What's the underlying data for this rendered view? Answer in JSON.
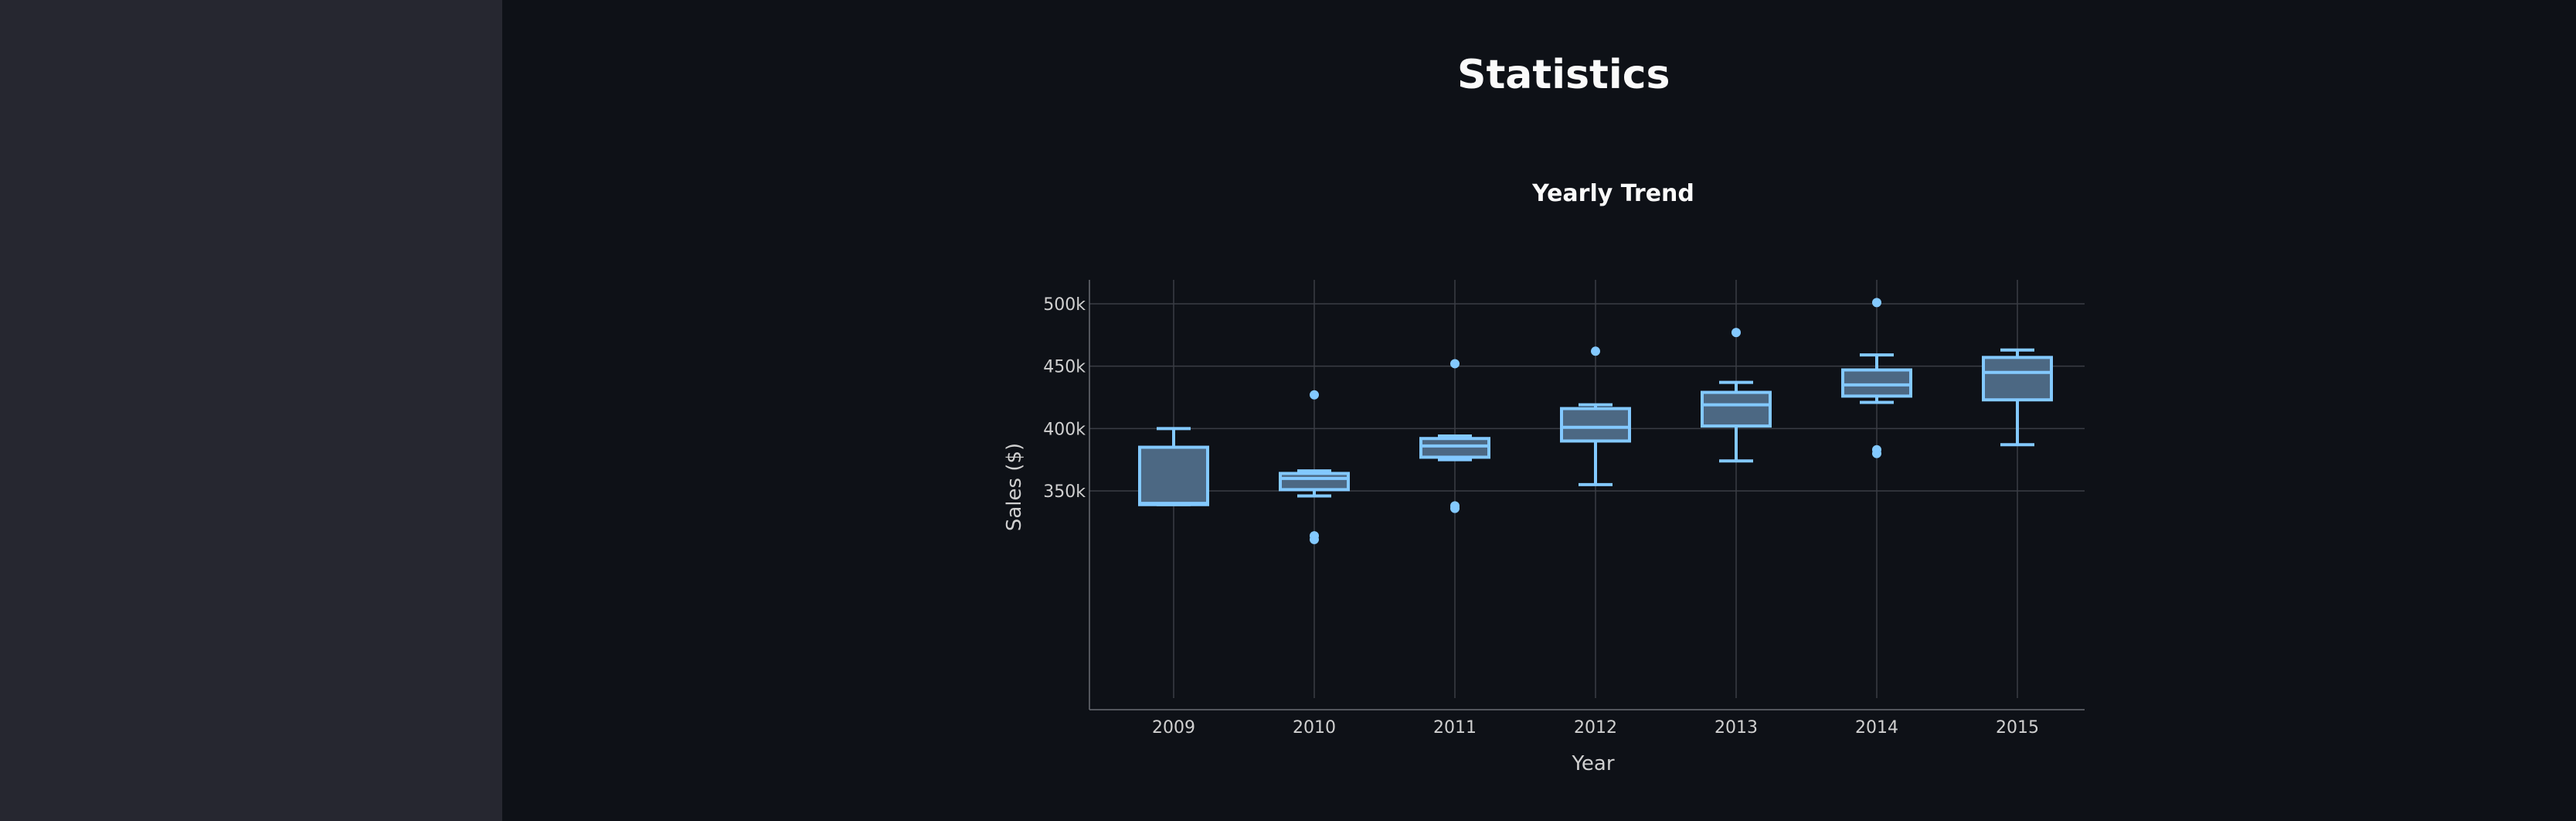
{
  "page": {
    "title": "Statistics"
  },
  "colors": {
    "sidebar_bg": "#262730",
    "main_bg": "#0e1117",
    "box_stroke": "#83c9ff",
    "box_fill": "#4c6883",
    "grid": "#3a3d45",
    "text": "#fafafa"
  },
  "chart_data": {
    "type": "box",
    "title": "Yearly Trend",
    "xlabel": "Year",
    "ylabel": "Sales ($)",
    "ylim": [
      305000,
      512000
    ],
    "yticks": [
      350000,
      400000,
      450000,
      500000
    ],
    "ytick_labels": [
      "350k",
      "400k",
      "450k",
      "500k"
    ],
    "grid": true,
    "categories": [
      "2009",
      "2010",
      "2011",
      "2012",
      "2013",
      "2014",
      "2015"
    ],
    "boxes": [
      {
        "year": "2009",
        "whisker_low": 339000,
        "q1": 339000,
        "median": 340000,
        "q3": 385000,
        "whisker_high": 400000,
        "outliers": []
      },
      {
        "year": "2010",
        "whisker_low": 346000,
        "q1": 351000,
        "median": 360000,
        "q3": 364000,
        "whisker_high": 366000,
        "outliers": [
          427000,
          314000,
          311000
        ]
      },
      {
        "year": "2011",
        "whisker_low": 375000,
        "q1": 377000,
        "median": 386000,
        "q3": 392000,
        "whisker_high": 394000,
        "outliers": [
          452000,
          338000,
          336000
        ]
      },
      {
        "year": "2012",
        "whisker_low": 355000,
        "q1": 390000,
        "median": 401000,
        "q3": 416000,
        "whisker_high": 419000,
        "outliers": [
          462000
        ]
      },
      {
        "year": "2013",
        "whisker_low": 374000,
        "q1": 402000,
        "median": 419000,
        "q3": 429000,
        "whisker_high": 437000,
        "outliers": [
          477000
        ]
      },
      {
        "year": "2014",
        "whisker_low": 421000,
        "q1": 426000,
        "median": 435000,
        "q3": 447000,
        "whisker_high": 459000,
        "outliers": [
          501000,
          383000,
          380000
        ]
      },
      {
        "year": "2015",
        "whisker_low": 387000,
        "q1": 423000,
        "median": 445000,
        "q3": 457000,
        "whisker_high": 463000,
        "outliers": []
      }
    ]
  }
}
